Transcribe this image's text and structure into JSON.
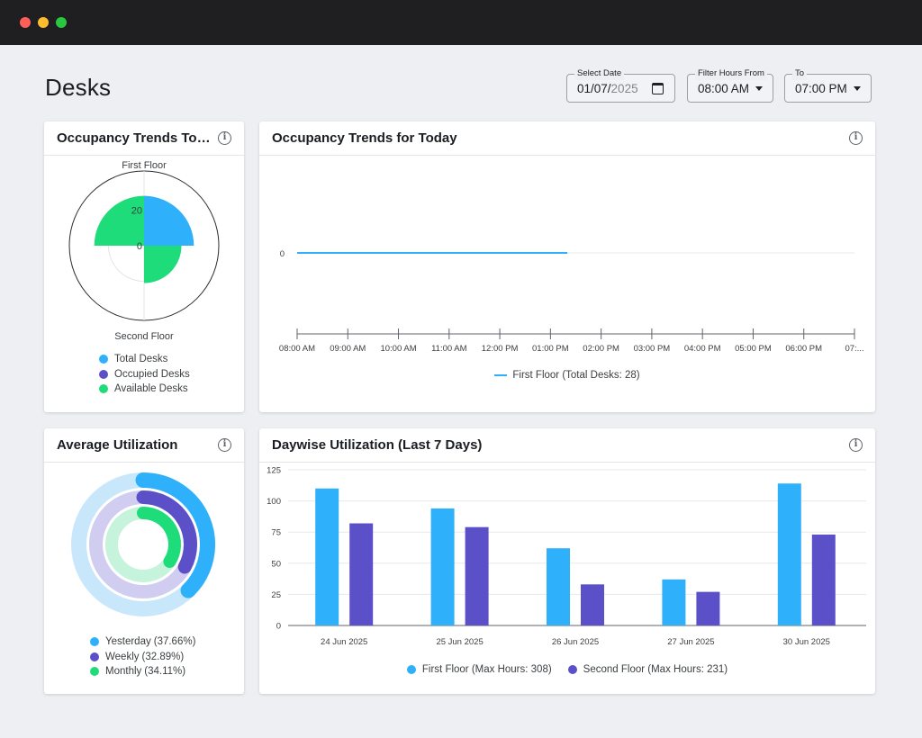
{
  "window": {
    "controls": [
      "close",
      "minimize",
      "maximize"
    ]
  },
  "page": {
    "title": "Desks"
  },
  "filters": {
    "date": {
      "label": "Select Date",
      "value_main": "01/07/",
      "value_faded": "2025",
      "icon": "calendar-icon"
    },
    "hours_from": {
      "label": "Filter Hours From",
      "value": "08:00 AM",
      "icon": "caret-down-icon"
    },
    "hours_to": {
      "label": "To",
      "value": "07:00 PM",
      "icon": "caret-down-icon"
    }
  },
  "colors": {
    "total": "#2fb0fa",
    "occupied": "#5b50c8",
    "available": "#1fdc7a",
    "light_total": "#c9e7fb",
    "light_occupied": "#d0cdf1",
    "light_available": "#c6f3dc"
  },
  "cards": {
    "polar": {
      "title": "Occupancy Trends Tod...",
      "top_label": "First Floor",
      "bottom_label": "Second Floor",
      "legend": [
        "Total Desks",
        "Occupied Desks",
        "Available Desks"
      ]
    },
    "trend": {
      "title": "Occupancy Trends for Today",
      "legend": "First Floor (Total Desks: 28)"
    },
    "avg": {
      "title": "Average Utilization",
      "legend": [
        {
          "name": "Yesterday",
          "value": "(37.66%)"
        },
        {
          "name": "Weekly",
          "value": "(32.89%)"
        },
        {
          "name": "Monthly",
          "value": "(34.11%)"
        }
      ]
    },
    "daywise": {
      "title": "Daywise Utilization (Last 7 Days)",
      "legend": [
        "First Floor (Max Hours: 308)",
        "Second Floor (Max Hours: 231)"
      ]
    }
  },
  "chart_data": [
    {
      "type": "polar-area",
      "title": "Occupancy Trends Tod...",
      "categories": [
        "First Floor",
        "Second Floor"
      ],
      "series": [
        {
          "name": "Total Desks",
          "values": [
            28,
            21
          ]
        },
        {
          "name": "Available Desks",
          "values": [
            28,
            21
          ]
        },
        {
          "name": "Occupied Desks",
          "values": [
            0,
            0
          ]
        }
      ],
      "r_ticks": [
        "0",
        "20"
      ]
    },
    {
      "type": "line",
      "title": "Occupancy Trends for Today",
      "x": [
        "08:00 AM",
        "09:00 AM",
        "10:00 AM",
        "11:00 AM",
        "12:00 PM",
        "01:00 PM",
        "02:00 PM",
        "03:00 PM",
        "04:00 PM",
        "05:00 PM",
        "06:00 PM",
        "07:..."
      ],
      "y_ticks": [
        "0"
      ],
      "series": [
        {
          "name": "First Floor (Total Desks: 28)",
          "values": [
            0,
            0,
            0,
            0,
            0,
            0,
            null,
            null,
            null,
            null,
            null,
            null
          ],
          "end_x": "01:20 PM"
        }
      ]
    },
    {
      "type": "radial-bar",
      "title": "Average Utilization",
      "series": [
        {
          "name": "Yesterday",
          "values": [
            37.66
          ]
        },
        {
          "name": "Weekly",
          "values": [
            32.89
          ]
        },
        {
          "name": "Monthly",
          "values": [
            34.11
          ]
        }
      ]
    },
    {
      "type": "bar",
      "title": "Daywise Utilization (Last 7 Days)",
      "categories": [
        "24 Jun 2025",
        "25 Jun 2025",
        "26 Jun 2025",
        "27 Jun 2025",
        "30 Jun 2025"
      ],
      "series": [
        {
          "name": "First Floor (Max Hours: 308)",
          "values": [
            110,
            94,
            62,
            37,
            114
          ]
        },
        {
          "name": "Second Floor (Max Hours: 231)",
          "values": [
            82,
            79,
            33,
            27,
            73
          ]
        }
      ],
      "ylim": [
        0,
        125
      ],
      "y_ticks": [
        "0",
        "25",
        "50",
        "75",
        "100",
        "125"
      ]
    }
  ]
}
